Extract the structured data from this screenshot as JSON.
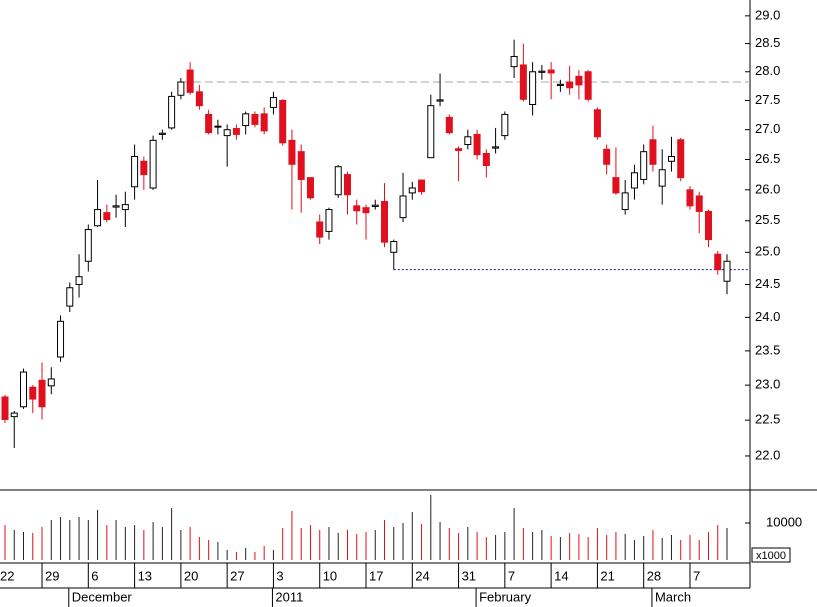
{
  "chart_data": {
    "type": "candlestick",
    "categories": [
      "22",
      null,
      null,
      null,
      "29",
      null,
      null,
      null,
      null,
      "6",
      null,
      null,
      null,
      null,
      "13",
      null,
      null,
      null,
      null,
      "20",
      null,
      null,
      null,
      null,
      "27",
      null,
      null,
      null,
      null,
      "3",
      null,
      null,
      null,
      null,
      "10",
      null,
      null,
      null,
      null,
      "17",
      null,
      null,
      null,
      null,
      "24",
      null,
      null,
      null,
      null,
      "31",
      null,
      null,
      null,
      null,
      "7",
      null,
      null,
      null,
      null,
      "14",
      null,
      null,
      null,
      null,
      "21",
      null,
      null,
      null,
      null,
      "28",
      null,
      null,
      null,
      null,
      "7",
      null,
      null,
      null,
      null
    ],
    "month_labels": [
      null,
      null,
      null,
      null,
      null,
      null,
      null,
      "December",
      null,
      null,
      null,
      null,
      null,
      null,
      null,
      null,
      null,
      null,
      null,
      null,
      null,
      null,
      null,
      null,
      null,
      null,
      null,
      null,
      null,
      "2011",
      null,
      null,
      null,
      null,
      null,
      null,
      null,
      null,
      null,
      null,
      null,
      null,
      null,
      null,
      null,
      null,
      null,
      null,
      null,
      null,
      null,
      "February",
      null,
      null,
      null,
      null,
      null,
      null,
      null,
      null,
      null,
      null,
      null,
      null,
      null,
      null,
      null,
      null,
      null,
      null,
      "March",
      null,
      null,
      null,
      null,
      null,
      null,
      null,
      null
    ],
    "open": [
      22.83,
      22.55,
      22.69,
      22.97,
      23.07,
      22.99,
      23.41,
      24.17,
      24.5,
      24.86,
      25.42,
      25.63,
      25.72,
      25.68,
      26.05,
      26.47,
      26.03,
      26.92,
      27.03,
      27.59,
      28.03,
      27.65,
      27.26,
      27.05,
      26.9,
      27.02,
      27.07,
      27.26,
      27.27,
      27.38,
      27.5,
      26.82,
      26.63,
      26.2,
      25.48,
      25.33,
      25.92,
      26.25,
      25.74,
      25.71,
      25.73,
      25.81,
      25.0,
      25.55,
      25.95,
      26.16,
      26.53,
      27.49,
      27.21,
      26.68,
      26.75,
      26.92,
      26.6,
      26.69,
      26.9,
      28.09,
      28.12,
      27.43,
      27.99,
      28.03,
      27.76,
      27.82,
      27.92,
      28.0,
      27.34,
      26.67,
      26.2,
      25.68,
      26.03,
      26.17,
      26.83,
      26.06,
      26.47,
      26.83,
      26.0,
      25.9,
      25.65,
      24.97,
      24.55
    ],
    "high": [
      22.86,
      22.63,
      23.24,
      23.0,
      23.33,
      23.26,
      24.03,
      24.53,
      24.97,
      25.44,
      26.16,
      25.76,
      25.92,
      25.97,
      26.75,
      26.55,
      26.9,
      27.0,
      27.65,
      27.89,
      28.17,
      27.77,
      27.34,
      27.17,
      27.09,
      27.09,
      27.31,
      27.31,
      27.38,
      27.65,
      27.52,
      27.0,
      26.75,
      26.2,
      25.6,
      25.71,
      26.41,
      26.3,
      25.84,
      25.76,
      25.84,
      26.11,
      25.2,
      26.28,
      26.13,
      26.16,
      27.6,
      27.97,
      27.26,
      26.72,
      27.0,
      27.0,
      26.67,
      27.03,
      27.31,
      28.57,
      28.5,
      28.17,
      28.12,
      28.17,
      27.86,
      28.1,
      28.03,
      28.03,
      27.38,
      26.75,
      26.7,
      26.16,
      26.41,
      26.75,
      27.07,
      26.67,
      26.88,
      26.86,
      26.06,
      25.97,
      25.68,
      25.02,
      24.97
    ],
    "low": [
      22.46,
      22.11,
      22.66,
      22.6,
      22.51,
      22.87,
      23.34,
      24.08,
      24.3,
      24.7,
      25.4,
      25.48,
      25.55,
      25.4,
      25.84,
      26.0,
      26.0,
      26.83,
      27.0,
      27.52,
      27.6,
      27.34,
      26.92,
      26.92,
      26.38,
      26.83,
      26.92,
      27.04,
      26.92,
      27.26,
      26.73,
      25.68,
      25.63,
      25.84,
      25.13,
      25.2,
      25.87,
      25.6,
      25.44,
      25.2,
      25.68,
      25.08,
      24.73,
      25.48,
      25.84,
      25.92,
      26.53,
      27.4,
      26.92,
      26.14,
      26.67,
      26.5,
      26.2,
      26.6,
      26.83,
      27.89,
      27.48,
      27.24,
      27.86,
      27.52,
      27.65,
      27.6,
      27.52,
      27.48,
      26.83,
      26.25,
      25.92,
      25.6,
      25.84,
      26.09,
      26.3,
      25.76,
      26.3,
      26.14,
      25.68,
      25.3,
      25.08,
      24.65,
      24.35
    ],
    "close": [
      22.51,
      22.6,
      23.19,
      22.8,
      22.69,
      23.09,
      23.94,
      24.45,
      24.62,
      25.36,
      25.68,
      25.52,
      25.74,
      25.76,
      26.55,
      26.25,
      26.82,
      26.94,
      27.57,
      27.82,
      27.64,
      27.41,
      26.95,
      27.06,
      27.0,
      26.92,
      27.27,
      27.09,
      26.98,
      27.55,
      26.78,
      26.42,
      26.17,
      25.87,
      25.24,
      25.68,
      26.38,
      25.92,
      25.66,
      25.63,
      25.75,
      25.16,
      25.17,
      25.9,
      26.03,
      25.97,
      27.41,
      27.51,
      26.95,
      26.65,
      26.88,
      26.58,
      26.4,
      26.71,
      27.26,
      28.27,
      27.52,
      28.0,
      28.01,
      27.98,
      27.78,
      27.72,
      27.77,
      27.52,
      26.88,
      26.42,
      25.95,
      25.95,
      26.28,
      26.63,
      26.42,
      26.33,
      26.55,
      26.2,
      25.74,
      25.65,
      25.2,
      24.73,
      24.86
    ],
    "volume": [
      9460,
      8110,
      7570,
      7300,
      8920,
      10810,
      11620,
      10810,
      11620,
      10810,
      13510,
      9460,
      10810,
      8920,
      9460,
      8110,
      10270,
      8920,
      14050,
      8110,
      8920,
      6220,
      5410,
      4860,
      2700,
      2160,
      3240,
      2160,
      3780,
      2700,
      8650,
      13240,
      8650,
      9460,
      8110,
      8920,
      7300,
      8110,
      7030,
      7570,
      8110,
      10810,
      8920,
      10000,
      12970,
      9730,
      17570,
      10270,
      8650,
      7300,
      8920,
      7570,
      6220,
      6760,
      7570,
      14050,
      8650,
      7570,
      8110,
      6490,
      6220,
      7300,
      7030,
      6220,
      8650,
      6760,
      7570,
      7030,
      5410,
      6490,
      8110,
      5950,
      6760,
      5410,
      6760,
      5410,
      7570,
      9460,
      8650
    ],
    "colors": {
      "up": "#ffffff",
      "down": "#e0101e",
      "up_volume": "#222222",
      "down_volume": "#e0101e"
    },
    "log": true,
    "ylim": [
      21.535,
      29.29
    ],
    "yticks": [
      {
        "value": 22,
        "label": "22.0"
      },
      22.5,
      {
        "value": 23,
        "label": "23.0"
      },
      23.5,
      {
        "value": 24,
        "label": "24.0"
      },
      24.5,
      {
        "value": 25,
        "label": "25.0"
      },
      25.5,
      {
        "value": 26,
        "label": "26.0"
      },
      26.5,
      {
        "value": 27,
        "label": "27.0"
      },
      27.5,
      {
        "value": 28,
        "label": "28.0"
      },
      28.5,
      {
        "value": 29,
        "label": "29.0"
      }
    ],
    "y2lim": [
      0,
      18920
    ],
    "y2ticks": [
      10000
    ],
    "y2_unit": "x1000",
    "reference_lines": [
      {
        "value": 27.82,
        "color": "#aaaaaa",
        "style": "dashed",
        "start": 19
      },
      {
        "value": 24.73,
        "color": "#1a1a8c",
        "style": "dotted",
        "start": 42
      }
    ]
  }
}
